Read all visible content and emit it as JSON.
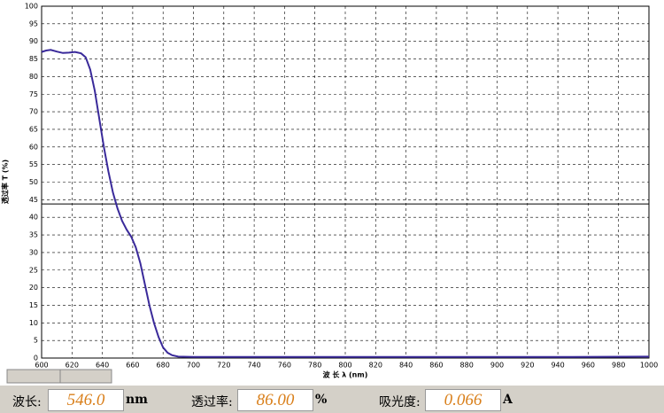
{
  "chart_data": {
    "type": "line",
    "x_label": "波 长 λ (nm)",
    "y_label": "透过率 T (%)",
    "x": [
      600,
      603,
      606,
      610,
      614,
      618,
      622,
      626,
      629,
      632,
      635,
      638,
      641,
      644,
      647,
      650,
      653,
      656,
      659,
      662,
      665,
      668,
      671,
      674,
      677,
      680,
      683,
      686,
      690,
      700,
      750,
      800,
      850,
      900,
      950,
      1000
    ],
    "values": [
      87,
      87.4,
      87.6,
      87.1,
      86.7,
      86.8,
      87,
      86.6,
      85.5,
      82,
      76,
      68,
      60,
      53,
      47,
      42.5,
      39,
      36.5,
      34.5,
      31.5,
      27,
      21,
      15,
      10,
      6,
      3,
      1.5,
      0.8,
      0.4,
      0.3,
      0.3,
      0.3,
      0.3,
      0.3,
      0.3,
      0.4
    ],
    "color": "#3a2a9a",
    "xlim": [
      600,
      1000
    ],
    "xticks": [
      600,
      620,
      640,
      660,
      680,
      700,
      720,
      740,
      760,
      780,
      800,
      820,
      840,
      860,
      880,
      900,
      920,
      940,
      960,
      980,
      1000
    ],
    "ylim": [
      0,
      100
    ],
    "yticks": [
      0,
      5,
      10,
      15,
      20,
      25,
      30,
      35,
      40,
      45,
      50,
      55,
      60,
      65,
      70,
      75,
      80,
      85,
      90,
      95,
      100
    ],
    "grid": true,
    "hline": 43.8
  },
  "status": {
    "wavelength_label": "波长:",
    "wavelength": "546.0",
    "wavelength_unit": "nm",
    "transmittance_label": "透过率:",
    "transmittance": "86.00",
    "transmittance_unit": "%",
    "absorbance_label": "吸光度:",
    "absorbance": "0.066",
    "absorbance_unit": "A"
  }
}
